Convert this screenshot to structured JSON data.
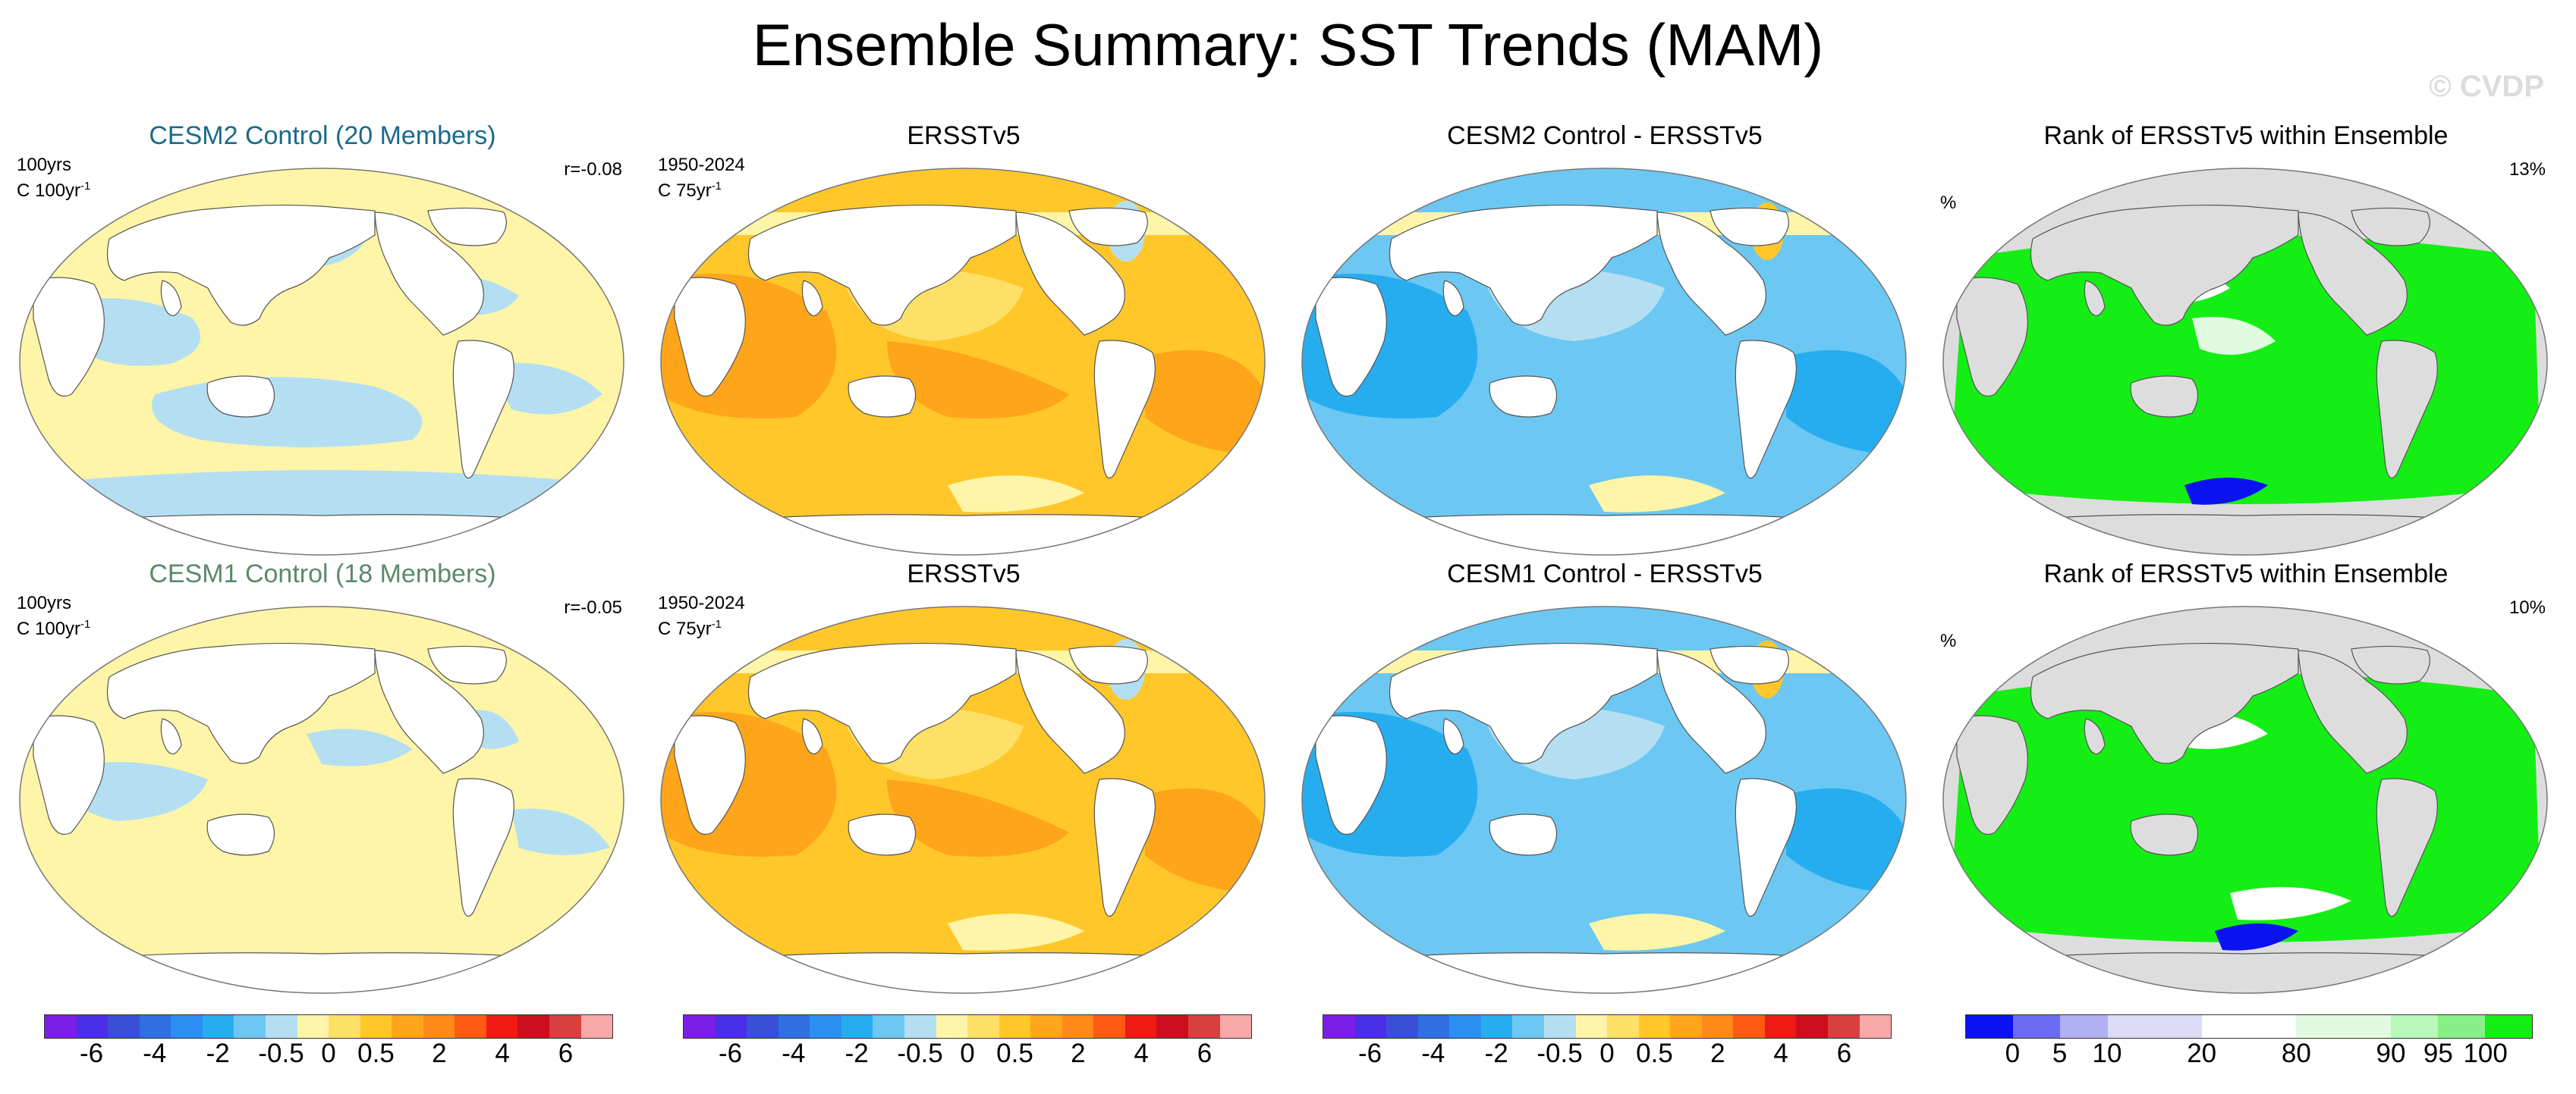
{
  "title": "Ensemble Summary: SST Trends (MAM)",
  "watermark": "© CVDP",
  "rows": [
    {
      "model_panel": {
        "title": "CESM2 Control (20 Members)",
        "title_color": "#1a6a8a",
        "period": "100yrs",
        "units": "C 100yr",
        "units_sup": "-1",
        "corr": "r=-0.08"
      },
      "obs_panel": {
        "title": "ERSSTv5",
        "period": "1950-2024",
        "units": "C 75yr",
        "units_sup": "-1"
      },
      "diff_panel": {
        "title": "CESM2 Control - ERSSTv5"
      },
      "rank_panel": {
        "title": "Rank of ERSSTv5 within Ensemble",
        "units": "%",
        "pct": "13%"
      }
    },
    {
      "model_panel": {
        "title": "CESM1 Control (18 Members)",
        "title_color": "#5a8a6a",
        "period": "100yrs",
        "units": "C 100yr",
        "units_sup": "-1",
        "corr": "r=-0.05"
      },
      "obs_panel": {
        "title": "ERSSTv5",
        "period": "1950-2024",
        "units": "C 75yr",
        "units_sup": "-1"
      },
      "diff_panel": {
        "title": "CESM1 Control - ERSSTv5"
      },
      "rank_panel": {
        "title": "Rank of ERSSTv5 within Ensemble",
        "units": "%",
        "pct": "10%"
      }
    }
  ],
  "colorbars": {
    "trend": {
      "colors": [
        "#7b1fe8",
        "#4a2ee8",
        "#3a4fd8",
        "#2f6fe0",
        "#2a8ff0",
        "#26adf0",
        "#6cc8f2",
        "#b4dff2",
        "#fff5a8",
        "#ffe066",
        "#ffc72a",
        "#ffa51a",
        "#ff8a1a",
        "#ff5a14",
        "#ee1a14",
        "#cc0e1e",
        "#d84040",
        "#f8a8a8"
      ],
      "ticks": [
        "-6",
        "-4",
        "-2",
        "-0.5",
        "0",
        "0.5",
        "2",
        "4",
        "6"
      ]
    },
    "rank": {
      "colors": [
        "#0a12f2",
        "#6a6af2",
        "#b0b0f2",
        "#dcdcf8",
        "#dcdcf8",
        "#ffffff",
        "#ffffff",
        "#e0fbe0",
        "#e0fbe0",
        "#b8f8b8",
        "#88f088",
        "#14ee14"
      ],
      "ticks": [
        "0",
        "5",
        "10",
        "20",
        "80",
        "90",
        "95",
        "100"
      ]
    }
  },
  "map_fields": {
    "model_ctrl": "weak trends, pale yellow and light blue",
    "obs": "warming, orange",
    "diff": "negative difference, blue",
    "rank": "percentile rank, green"
  }
}
